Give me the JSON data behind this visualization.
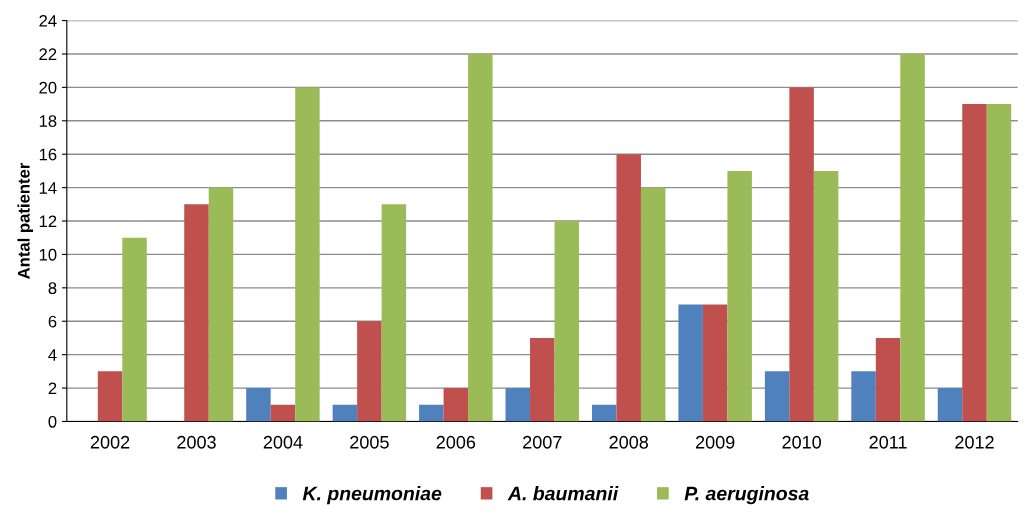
{
  "chart_data": {
    "type": "bar",
    "ylabel": "Antal patienter",
    "categories": [
      "2002",
      "2003",
      "2004",
      "2005",
      "2006",
      "2007",
      "2008",
      "2009",
      "2010",
      "2011",
      "2012"
    ],
    "series": [
      {
        "name": "K. pneumoniae",
        "color": "#4f81bd",
        "values": [
          0,
          0,
          2,
          1,
          1,
          2,
          1,
          7,
          3,
          3,
          2
        ]
      },
      {
        "name": "A. baumanii",
        "color": "#c0504d",
        "values": [
          3,
          13,
          1,
          6,
          2,
          5,
          16,
          7,
          20,
          5,
          19
        ]
      },
      {
        "name": "P. aeruginosa",
        "color": "#9bbb59",
        "values": [
          11,
          14,
          20,
          13,
          22,
          12,
          14,
          15,
          15,
          22,
          19
        ]
      }
    ],
    "ylim": [
      0,
      24
    ],
    "yticks": [
      0,
      2,
      4,
      6,
      8,
      10,
      12,
      14,
      16,
      18,
      20,
      22,
      24
    ],
    "grid": "y",
    "legend": "bottom"
  }
}
